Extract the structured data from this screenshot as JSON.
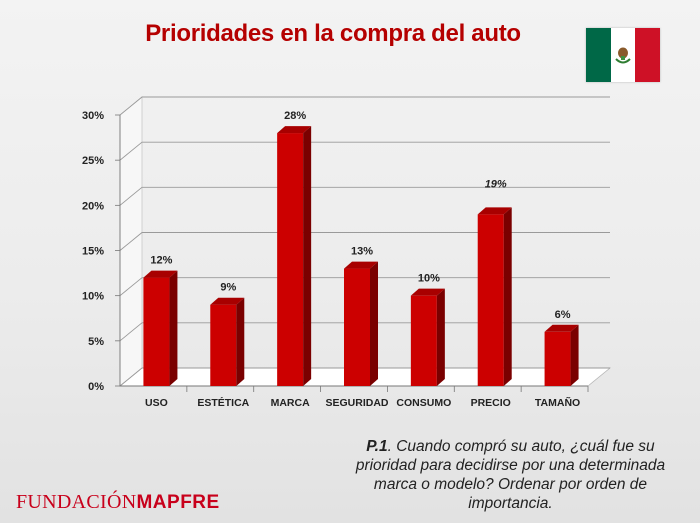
{
  "slide": {
    "title": "Prioridades en la compra del auto",
    "question_number": "P.1",
    "question_text": ". Cuando compró su auto, ¿cuál fue su prioridad para decidirse por una determinada marca o modelo? Ordenar por orden de importancia.",
    "logo_part1": "FUNDACIÓN",
    "logo_part2": "MAPFRE"
  },
  "flag": {
    "name": "mexico-flag",
    "colors": [
      "#006847",
      "#ffffff",
      "#ce1126"
    ]
  },
  "chart_data": {
    "type": "bar",
    "categories": [
      "USO",
      "ESTÉTICA",
      "MARCA",
      "SEGURIDAD",
      "CONSUMO",
      "PRECIO",
      "TAMAÑO"
    ],
    "values": [
      12,
      9,
      28,
      13,
      10,
      19,
      6
    ],
    "value_labels": [
      "12%",
      "9%",
      "28%",
      "13%",
      "10%",
      "19%",
      "6%"
    ],
    "ylim": [
      0,
      30
    ],
    "yticks": [
      "0%",
      "5%",
      "10%",
      "15%",
      "20%",
      "25%",
      "30%"
    ],
    "grid": true,
    "bar_color": "#cc0000",
    "style": "3d"
  }
}
